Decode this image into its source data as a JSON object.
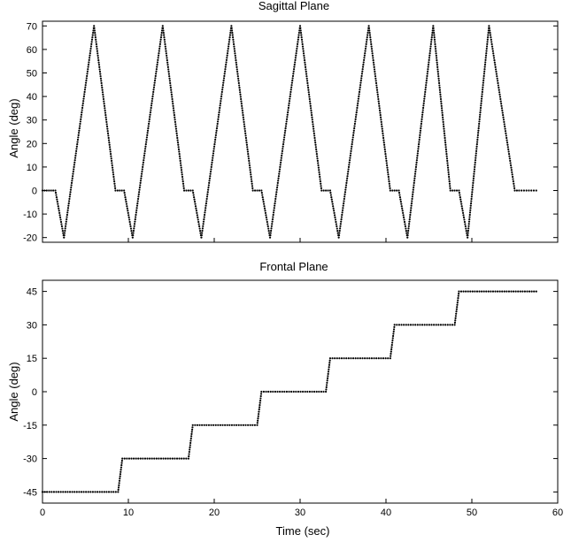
{
  "chart_data": [
    {
      "type": "scatter",
      "title": "Sagittal Plane",
      "xlabel": "",
      "ylabel": "Angle (deg)",
      "xlim": [
        0,
        60
      ],
      "ylim": [
        -22,
        72
      ],
      "xticks": [],
      "yticks": [
        70,
        60,
        50,
        40,
        30,
        20,
        10,
        0,
        -10,
        -20
      ],
      "grid": false,
      "series": [
        {
          "color": "#000000",
          "x": [
            0,
            1.5,
            2.5,
            6,
            8.5,
            9.5,
            10.5,
            14,
            16.5,
            17.5,
            18.5,
            22,
            24.5,
            25.5,
            26.5,
            30,
            32.5,
            33.5,
            34.5,
            38,
            40.5,
            41.5,
            42.5,
            45.5,
            47.5,
            48.5,
            49.5,
            52,
            55,
            55.5,
            57.5
          ],
          "y": [
            0,
            0,
            -20,
            70,
            0,
            0,
            -20,
            70,
            0,
            0,
            -20,
            70,
            0,
            0,
            -20,
            70,
            0,
            0,
            -20,
            70,
            0,
            0,
            -20,
            70,
            0,
            0,
            -20,
            70,
            0,
            0,
            0
          ]
        }
      ]
    },
    {
      "type": "scatter",
      "title": "Frontal Plane",
      "xlabel": "Time (sec)",
      "ylabel": "Angle (deg)",
      "xlim": [
        0,
        60
      ],
      "ylim": [
        -50,
        50
      ],
      "xticks": [
        0,
        10,
        20,
        30,
        40,
        50,
        60
      ],
      "yticks": [
        45,
        30,
        15,
        0,
        -15,
        -30,
        -45
      ],
      "grid": false,
      "series": [
        {
          "color": "#000000",
          "x": [
            0,
            8.8,
            9.3,
            17,
            17.5,
            25,
            25.5,
            33,
            33.5,
            40.5,
            41,
            48,
            48.5,
            57.5
          ],
          "y": [
            -45,
            -45,
            -30,
            -30,
            -15,
            -15,
            0,
            0,
            15,
            15,
            30,
            30,
            45,
            45
          ]
        }
      ]
    }
  ]
}
